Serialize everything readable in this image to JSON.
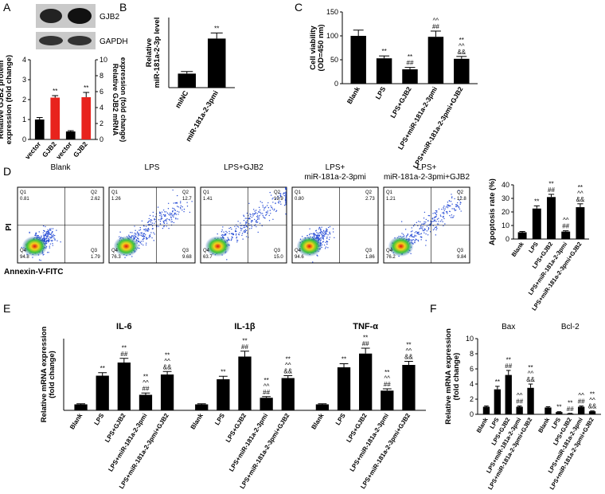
{
  "chart_data": [
    {
      "panel": "A",
      "type": "bar",
      "blot_labels": [
        "GJB2",
        "GAPDH"
      ],
      "categories": [
        "vector",
        "GJB2",
        "vector",
        "GJB2"
      ],
      "values": [
        1,
        2.1,
        1,
        5.3
      ],
      "errors": [
        0.1,
        0.1,
        0.1,
        0.6
      ],
      "axes": [
        "y",
        "y",
        "y2",
        "y2"
      ],
      "colors": [
        "#000000",
        "#e8231d",
        "#000000",
        "#e8231d"
      ],
      "annotations": [
        [],
        [
          "**"
        ],
        [],
        [
          "**"
        ]
      ],
      "ylabel": [
        "Relative GJB2 protein",
        "expression (fold change)"
      ],
      "y2label": [
        "Relative GJB2 mRNA",
        "expression (fold change)"
      ],
      "ylim": [
        0,
        4
      ],
      "yticks": [
        0,
        1,
        2,
        3,
        4
      ],
      "y2lim": [
        0,
        10
      ],
      "y2ticks": [
        0,
        2,
        4,
        6,
        8,
        10
      ]
    },
    {
      "panel": "B",
      "type": "bar",
      "categories": [
        "miNC",
        "miR-181a-2-3pmi"
      ],
      "values": [
        1,
        3.5
      ],
      "errors": [
        0.15,
        0.4
      ],
      "color": "#000000",
      "annotations": [
        [],
        [
          "**"
        ]
      ],
      "ylabel": [
        "Relative",
        "miR-181a-2-3p level"
      ],
      "ylim": [
        0,
        5
      ]
    },
    {
      "panel": "C",
      "type": "bar",
      "categories": [
        "Blank",
        "LPS",
        "LPS+GJB2",
        "LPS+miR-181a-2-3pmi",
        "LPS+miR-181a-2-3pmi+GJB2"
      ],
      "values": [
        100,
        53,
        30,
        98,
        52
      ],
      "errors": [
        12,
        5,
        4,
        12,
        5
      ],
      "color": "#000000",
      "annotations": [
        [],
        [
          "**"
        ],
        [
          "**",
          "##"
        ],
        [
          "^^",
          "##"
        ],
        [
          "**",
          "^^",
          "&&"
        ]
      ],
      "ylabel": [
        "Cell viability",
        "(OD=450 nm)"
      ],
      "ylim": [
        0,
        150
      ],
      "yticks": [
        0,
        50,
        100,
        150
      ]
    },
    {
      "panel": "D",
      "type": "flow",
      "xlabel": "Annexin-V-FITC",
      "ylabel": "PI",
      "quadrant_names": [
        "Q1",
        "Q2",
        "Q3",
        "Q4"
      ],
      "panels": [
        {
          "title": [
            "Blank"
          ],
          "values": [
            0.81,
            2.62,
            1.79,
            94.8
          ]
        },
        {
          "title": [
            "LPS"
          ],
          "values": [
            1.26,
            12.7,
            9.68,
            76.3
          ]
        },
        {
          "title": [
            "LPS+GJB2"
          ],
          "values": [
            1.41,
            19.9,
            15,
            63.7
          ],
          "value_labels": [
            "1.41",
            "19.9",
            "15.0",
            "63.7"
          ]
        },
        {
          "title": [
            "LPS+",
            "miR-181a-2-3pmi"
          ],
          "values": [
            0.8,
            2.73,
            1.86,
            94.6
          ],
          "value_labels": [
            "0.80",
            "2.73",
            "1.86",
            "94.6"
          ]
        },
        {
          "title": [
            "LPS+",
            "miR-181a-2-3pmi+GJB2"
          ],
          "values": [
            1.21,
            12.8,
            9.84,
            76.2
          ]
        }
      ]
    },
    {
      "type": "bar",
      "categories": [
        "Blank",
        "LPS",
        "LPS+GJB2",
        "LPS+miR-181a-2-3pmi",
        "LPS+miR-181a-2-3pmi+GJB2"
      ],
      "values": [
        5,
        22.5,
        31,
        5.5,
        23.5
      ],
      "errors": [
        0.6,
        2,
        2,
        0.6,
        2.5
      ],
      "color": "#000000",
      "annotations": [
        [],
        [
          "**"
        ],
        [
          "**",
          "##"
        ],
        [
          "^^",
          "##"
        ],
        [
          "**",
          "^^",
          "&&"
        ]
      ],
      "ylabel": [
        "Apoptosis rate (%)"
      ],
      "ylim": [
        0,
        40
      ],
      "yticks": [
        0,
        10,
        20,
        30,
        40
      ]
    },
    {
      "panel": "E",
      "type": "bar",
      "categories": [
        "Blank",
        "LPS",
        "LPS+GJB2",
        "LPS+miR-181a-2-3pmi",
        "LPS+miR-181a-2-3pmi+GJB2"
      ],
      "color": "#000000",
      "ylabel": [
        "Relative mRNA expression",
        "(fold change)"
      ],
      "ylim": [
        0,
        12
      ],
      "groups": [
        {
          "title": "IL-6",
          "values": [
            1,
            5.8,
            8,
            2.6,
            6
          ],
          "errors": [
            0.1,
            0.5,
            0.7,
            0.3,
            0.5
          ],
          "annotations": [
            [],
            [
              "**"
            ],
            [
              "**",
              "##"
            ],
            [
              "**",
              "^^",
              "##"
            ],
            [
              "**",
              "^^",
              "&&"
            ]
          ]
        },
        {
          "title": "IL-1β",
          "values": [
            1,
            5.2,
            9,
            2.1,
            5.4
          ],
          "errors": [
            0.1,
            0.5,
            0.9,
            0.2,
            0.4
          ],
          "annotations": [
            [],
            [
              "**"
            ],
            [
              "**",
              "##"
            ],
            [
              "**",
              "^^",
              "##"
            ],
            [
              "**",
              "^^",
              "&&"
            ]
          ]
        },
        {
          "title": "TNF-α",
          "values": [
            1,
            7.2,
            9.5,
            3.3,
            7.6
          ],
          "errors": [
            0.1,
            0.6,
            0.9,
            0.3,
            0.6
          ],
          "annotations": [
            [],
            [
              "**"
            ],
            [
              "**",
              "##"
            ],
            [
              "**",
              "^^",
              "##"
            ],
            [
              "**",
              "^^",
              "&&"
            ]
          ]
        }
      ]
    },
    {
      "panel": "F",
      "type": "bar",
      "categories": [
        "Blank",
        "LPS",
        "LPS+GJB2",
        "LPS+miR-181a-2-3pmi",
        "LPS+miR-181a-2-3pmi+GJB2"
      ],
      "color": "#000000",
      "ylabel": [
        "Relative mRNA expression",
        "(fold change)"
      ],
      "ylim": [
        0,
        10
      ],
      "yticks": [
        0,
        2,
        4,
        6,
        8,
        10
      ],
      "groups": [
        {
          "title": "Bax",
          "values": [
            1,
            3.3,
            5.2,
            1,
            3.5
          ],
          "errors": [
            0.1,
            0.4,
            0.6,
            0.1,
            0.5
          ],
          "annotations": [
            [],
            [
              "**"
            ],
            [
              "**",
              "##"
            ],
            [
              "^^",
              "##"
            ],
            [
              "**",
              "^^",
              "&&"
            ]
          ]
        },
        {
          "title": "Bcl-2",
          "values": [
            0.9,
            0.3,
            0.1,
            1,
            0.4
          ],
          "errors": [
            0.1,
            0.05,
            0.03,
            0.1,
            0.05
          ],
          "annotations": [
            [],
            [
              "**"
            ],
            [
              "**",
              "##"
            ],
            [
              "^^",
              "##"
            ],
            [
              "**",
              "^^",
              "&&"
            ]
          ]
        }
      ]
    }
  ]
}
